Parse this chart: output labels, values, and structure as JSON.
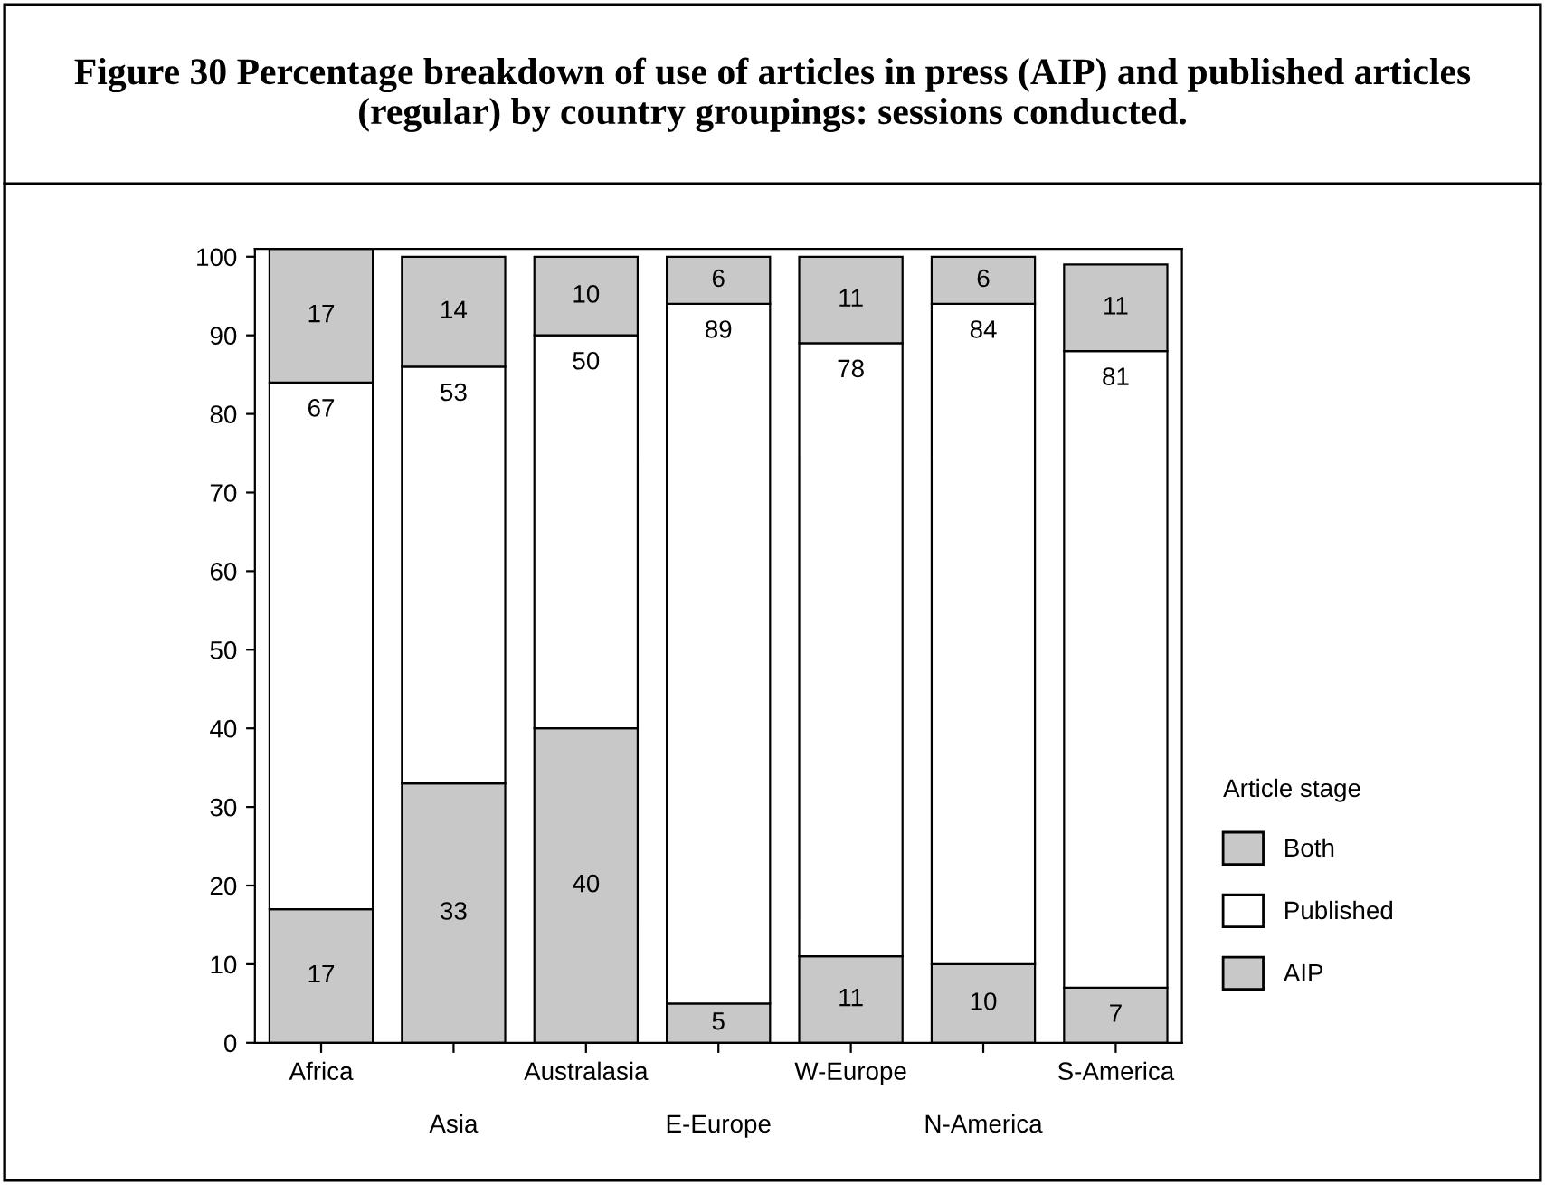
{
  "chart_data": {
    "type": "bar",
    "stacked": true,
    "title": "Figure 30 Percentage breakdown of use of articles in press (AIP) and published articles (regular) by country groupings: sessions conducted.",
    "categories": [
      "Africa",
      "Asia",
      "Australasia",
      "E-Europe",
      "W-Europe",
      "N-America",
      "S-America"
    ],
    "series": [
      {
        "name": "AIP",
        "color": "#c8c8c8",
        "values": [
          17,
          33,
          40,
          5,
          11,
          10,
          7
        ]
      },
      {
        "name": "Published",
        "color": "#ffffff",
        "values": [
          67,
          53,
          50,
          89,
          78,
          84,
          81
        ]
      },
      {
        "name": "Both",
        "color": "#c8c8c8",
        "values": [
          17,
          14,
          10,
          6,
          11,
          6,
          11
        ]
      }
    ],
    "data_labels": true,
    "legend": "right",
    "legend_title": "Article stage",
    "grid": false,
    "ylim": [
      0,
      101
    ],
    "yticks": [
      0,
      10,
      20,
      30,
      40,
      50,
      60,
      70,
      80,
      90,
      100
    ]
  }
}
